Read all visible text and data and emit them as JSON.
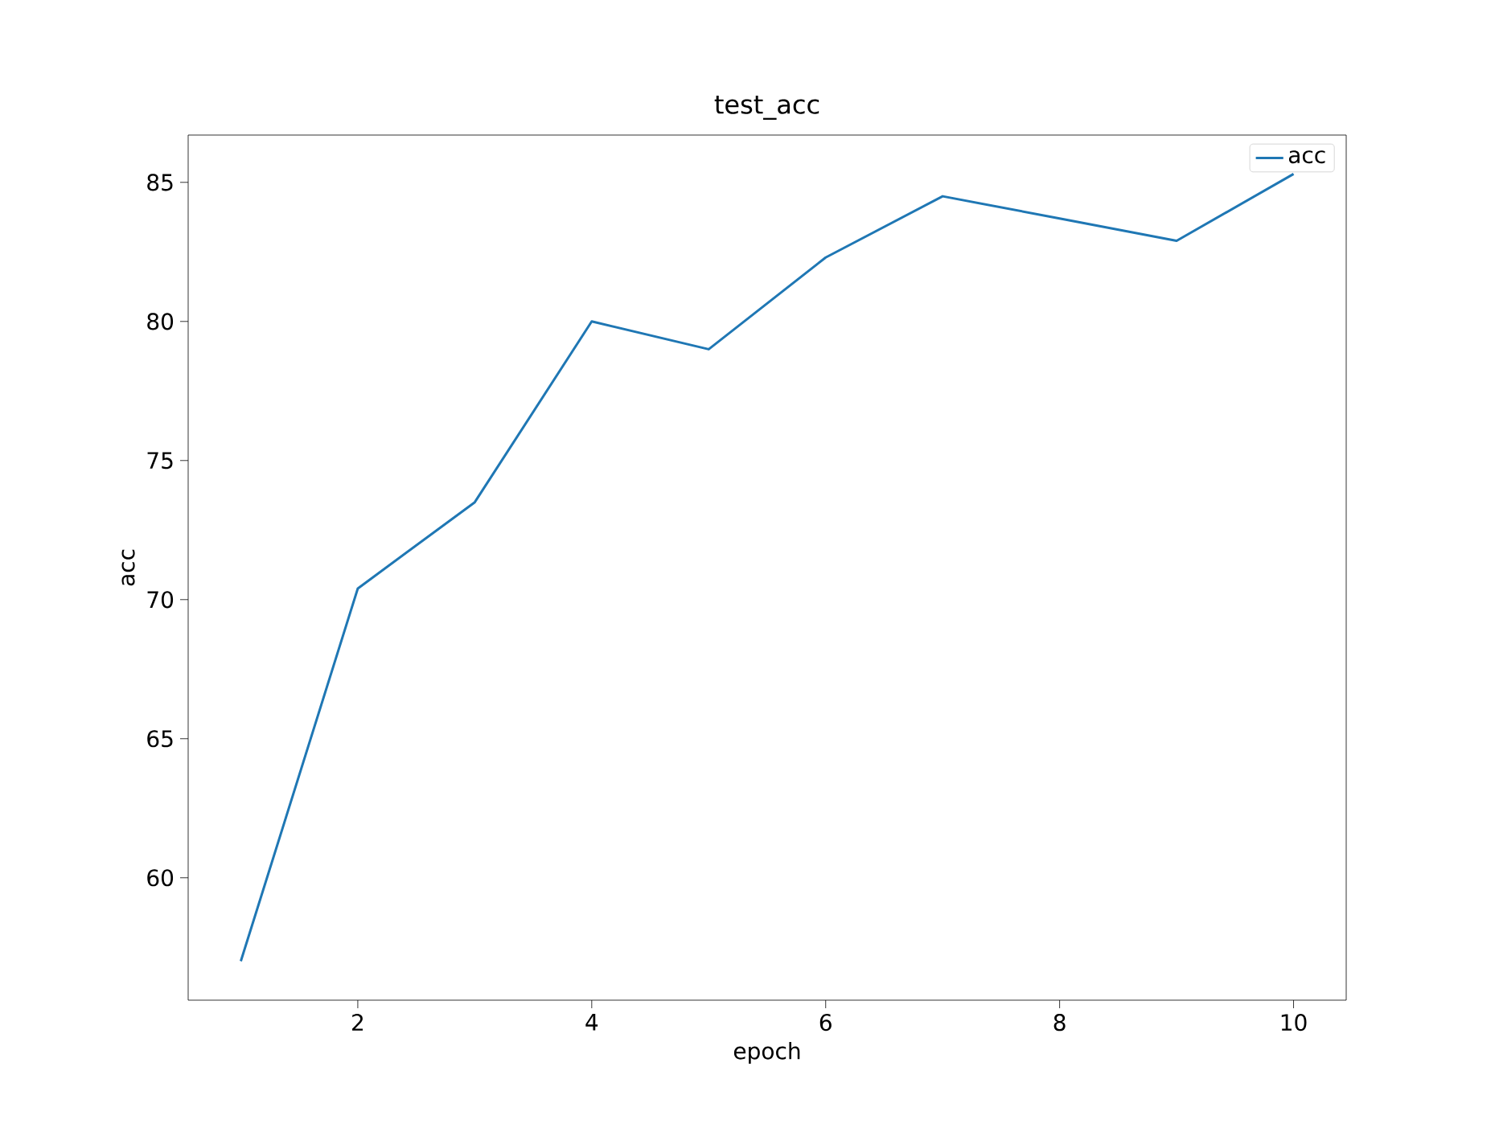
{
  "chart_data": {
    "type": "line",
    "title": "test_acc",
    "xlabel": "epoch",
    "ylabel": "acc",
    "x": [
      1,
      2,
      3,
      4,
      5,
      6,
      7,
      8,
      9,
      10
    ],
    "series": [
      {
        "name": "acc",
        "color": "#1f77b4",
        "values": [
          57.0,
          70.4,
          73.5,
          80.0,
          79.0,
          82.3,
          84.5,
          83.7,
          82.9,
          85.3
        ]
      }
    ],
    "xlim": [
      0.55,
      10.45
    ],
    "ylim": [
      55.6,
      86.7
    ],
    "xticks": [
      2,
      4,
      6,
      8,
      10
    ],
    "yticks": [
      60,
      65,
      70,
      75,
      80,
      85
    ],
    "legend": "top right",
    "grid": false,
    "marker": "none",
    "line_style": "solid"
  }
}
